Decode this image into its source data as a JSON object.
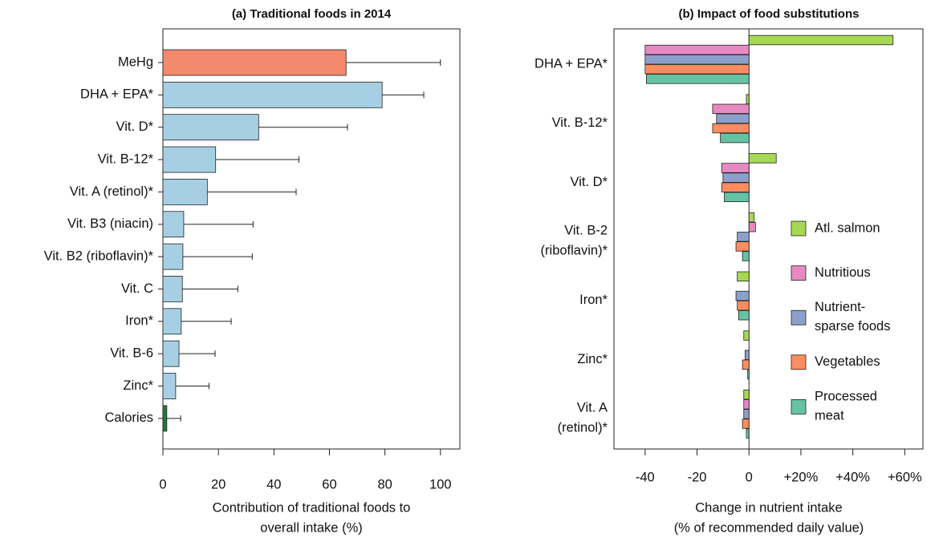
{
  "chart_data": [
    {
      "type": "bar",
      "orientation": "horizontal",
      "title": "(a) Traditional foods in 2014",
      "xlabel": "Contribution of traditional foods to\noverall intake (%)",
      "categories": [
        "MeHg",
        "DHA + EPA*",
        "Vit. D*",
        "Vit. B-12*",
        "Vit. A (retinol)*",
        "Vit. B3 (niacin)",
        "Vit. B2 (riboflavin)*",
        "Vit. C",
        "Iron*",
        "Vit. B-6",
        "Zinc*",
        "Calories"
      ],
      "values": [
        66,
        79,
        34.5,
        19,
        16,
        7.5,
        7.2,
        7,
        6.6,
        5.8,
        4.6,
        1.4
      ],
      "errors": [
        34,
        15,
        32,
        30,
        32,
        25,
        25,
        20,
        18,
        13,
        12,
        5
      ],
      "colors": [
        "#f4896b",
        "#a6cfe4",
        "#a6cfe4",
        "#a6cfe4",
        "#a6cfe4",
        "#a6cfe4",
        "#a6cfe4",
        "#a6cfe4",
        "#a6cfe4",
        "#a6cfe4",
        "#a6cfe4",
        "#1e7b3a"
      ],
      "xlim": [
        0,
        107
      ],
      "xticks": [
        0,
        20,
        40,
        60,
        80,
        100
      ]
    },
    {
      "type": "grouped-bar",
      "orientation": "horizontal",
      "title": "(b) Impact of food substitutions",
      "xlabel": "Change in nutrient intake\n(% of recommended daily value)",
      "categories": [
        "DHA + EPA*",
        "Vit. B-12*",
        "Vit. D*",
        "Vit. B-2\n(riboflavin)*",
        "Iron*",
        "Zinc*",
        "Vit. A\n(retinol)*"
      ],
      "series": [
        {
          "name": "Atl. salmon",
          "color": "#a6d854",
          "values": [
            55.5,
            -1,
            10.5,
            2,
            -4.5,
            -2,
            -2
          ]
        },
        {
          "name": "Nutritious",
          "color": "#e78ac3",
          "values": [
            -40,
            -14,
            -10.5,
            2.5,
            0,
            0,
            -2
          ]
        },
        {
          "name": "Nutrient-\nsparse foods",
          "color": "#8da0cb",
          "values": [
            -40,
            -12.5,
            -10,
            -4.5,
            -5,
            -1.5,
            -2
          ]
        },
        {
          "name": "Vegetables",
          "color": "#fc8d62",
          "values": [
            -40,
            -14,
            -10.5,
            -5,
            -4.5,
            -2.5,
            -2.5
          ]
        },
        {
          "name": "Processed\nmeat",
          "color": "#66c2a5",
          "values": [
            -39.5,
            -11,
            -9.5,
            -2.5,
            -4,
            -0.5,
            -1
          ]
        }
      ],
      "xlim": [
        -52,
        67
      ],
      "xticks": [
        -40,
        -20,
        0,
        {
          "value": 20,
          "label": "+20%"
        },
        {
          "value": 40,
          "label": "+40%"
        },
        {
          "value": 60,
          "label": "+60%"
        }
      ],
      "legend": "right"
    }
  ]
}
